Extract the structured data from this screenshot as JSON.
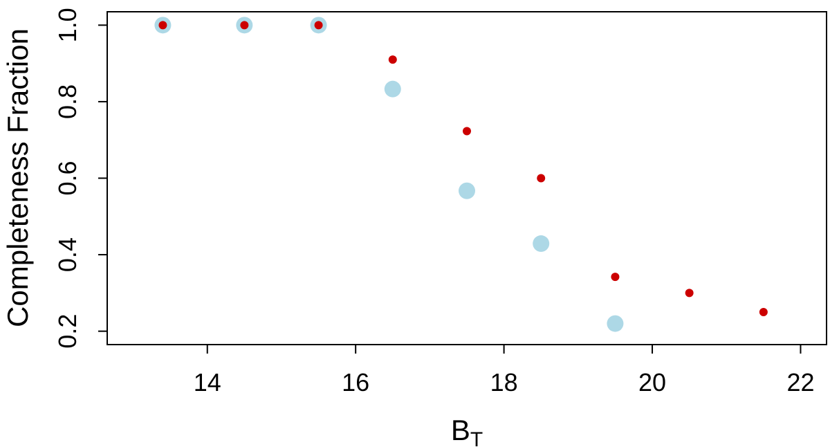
{
  "chart_data": {
    "type": "scatter",
    "title": "",
    "xlabel": "B",
    "xlabel_subscript": "T",
    "ylabel": "Completeness Fraction",
    "xlim": [
      12.65,
      22.35
    ],
    "ylim": [
      0.165,
      1.035
    ],
    "x_ticks": [
      14,
      16,
      18,
      20,
      22
    ],
    "x_tick_labels": [
      "14",
      "16",
      "18",
      "20",
      "22"
    ],
    "y_ticks": [
      0.2,
      0.4,
      0.6,
      0.8,
      1.0
    ],
    "y_tick_labels": [
      "0.2",
      "0.4",
      "0.6",
      "0.8",
      "1.0"
    ],
    "grid": false,
    "series": [
      {
        "color": "#add8e6",
        "marker": "large-circle",
        "points": [
          {
            "x": 13.4,
            "y": 1.0
          },
          {
            "x": 14.5,
            "y": 1.0
          },
          {
            "x": 15.5,
            "y": 1.0
          },
          {
            "x": 16.5,
            "y": 0.833
          },
          {
            "x": 17.5,
            "y": 0.567
          },
          {
            "x": 18.5,
            "y": 0.429
          },
          {
            "x": 19.5,
            "y": 0.22
          }
        ]
      },
      {
        "color": "#cc0000",
        "marker": "small-circle",
        "points": [
          {
            "x": 13.4,
            "y": 1.0
          },
          {
            "x": 14.5,
            "y": 1.0
          },
          {
            "x": 15.5,
            "y": 1.0
          },
          {
            "x": 16.5,
            "y": 0.91
          },
          {
            "x": 17.5,
            "y": 0.723
          },
          {
            "x": 18.5,
            "y": 0.6
          },
          {
            "x": 19.5,
            "y": 0.342
          },
          {
            "x": 20.5,
            "y": 0.3
          },
          {
            "x": 21.5,
            "y": 0.25
          }
        ]
      }
    ]
  }
}
